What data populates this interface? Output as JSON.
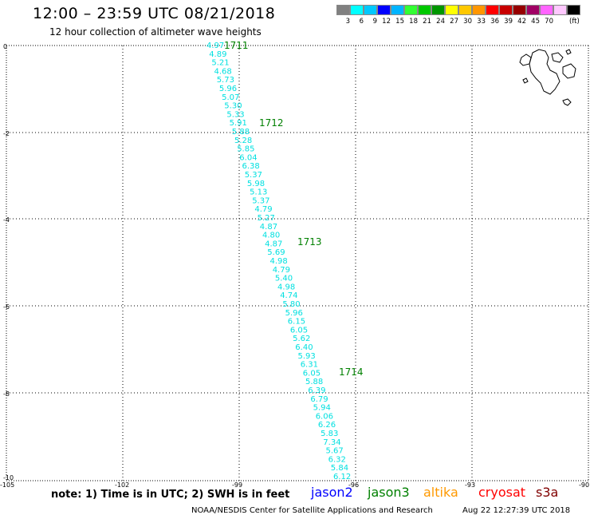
{
  "header": {
    "title": "12:00 – 23:59 UTC 08/21/2018",
    "subtitle": "12 hour collection of altimeter wave heights"
  },
  "legend": {
    "colors": [
      "#808080",
      "#00ffff",
      "#00c8ff",
      "#0000ff",
      "#00b4ff",
      "#32ff32",
      "#00c800",
      "#009600",
      "#ffff00",
      "#ffc800",
      "#ff9600",
      "#ff0000",
      "#c80000",
      "#960000",
      "#a00064",
      "#ff64ff",
      "#ffc8ff",
      "#000000"
    ],
    "labels": [
      "3",
      "6",
      "9",
      "12",
      "15",
      "18",
      "21",
      "24",
      "27",
      "30",
      "33",
      "36",
      "39",
      "42",
      "45",
      "70"
    ],
    "unit": "(ft)"
  },
  "axes": {
    "lat_ticks": [
      "0",
      "-2",
      "-4",
      "-6",
      "-8",
      "-10"
    ],
    "lon_ticks": [
      "-105",
      "-102",
      "-99",
      "-96",
      "-93",
      "-90"
    ]
  },
  "track": {
    "color": "#00e0e0",
    "values": [
      "4.97",
      "4.89",
      "5.21",
      "4.68",
      "5.73",
      "5.96",
      "5.07",
      "5.30",
      "5.33",
      "5.91",
      "5.88",
      "5.28",
      "5.85",
      "6.04",
      "6.38",
      "5.37",
      "5.98",
      "5.13",
      "5.37",
      "4.79",
      "5.27",
      "4.87",
      "4.80",
      "4.87",
      "5.69",
      "4.98",
      "4.79",
      "5.40",
      "4.98",
      "4.74",
      "5.80",
      "5.96",
      "6.15",
      "6.05",
      "5.62",
      "6.40",
      "5.93",
      "6.31",
      "6.05",
      "5.88",
      "6.39",
      "6.79",
      "5.94",
      "6.06",
      "6.26",
      "5.83",
      "7.34",
      "5.67",
      "6.32",
      "5.84",
      "6.12"
    ]
  },
  "times": {
    "color": "#008000",
    "labels": [
      "1711",
      "1712",
      "1713",
      "1714"
    ]
  },
  "footer": {
    "note": "note:  1) Time is in UTC;  2) SWH is in feet",
    "satellites": [
      {
        "name": "jason2",
        "color": "#0000ff"
      },
      {
        "name": "jason3",
        "color": "#008000"
      },
      {
        "name": "altika",
        "color": "#ff9900"
      },
      {
        "name": "cryosat",
        "color": "#ff0000"
      },
      {
        "name": "s3a",
        "color": "#800000"
      }
    ],
    "credit": "NOAA/NESDIS Center for Satellite Applications and Research",
    "timestamp": "Aug 22 12:27:39 UTC 2018"
  }
}
